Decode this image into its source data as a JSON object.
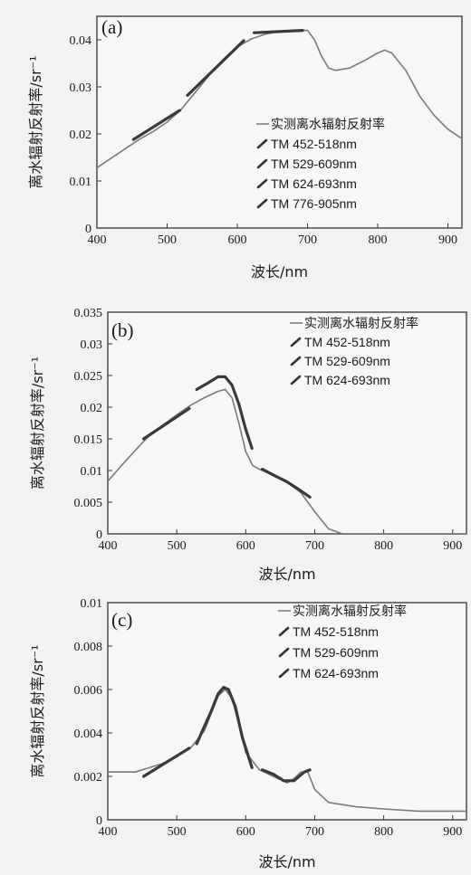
{
  "chart_data": [
    {
      "type": "line",
      "panel_label": "(a)",
      "xlabel": "波长/nm",
      "ylabel": "离水辐射反射率/sr⁻¹",
      "xlim": [
        400,
        920
      ],
      "ylim": [
        0,
        0.045
      ],
      "xticks": [
        "400",
        "500",
        "600",
        "700",
        "800",
        "900"
      ],
      "xtick_values": [
        400,
        500,
        600,
        700,
        800,
        900
      ],
      "yticks": [
        "0",
        "0.01",
        "0.02",
        "0.03",
        "0.04"
      ],
      "ytick_values": [
        0,
        0.01,
        0.02,
        0.03,
        0.04
      ],
      "grid": false,
      "legend_position": "right",
      "series": [
        {
          "name": "实测离水辐射反射率",
          "style": "solid",
          "x": [
            400,
            420,
            440,
            460,
            480,
            500,
            520,
            540,
            560,
            580,
            600,
            620,
            640,
            660,
            680,
            700,
            710,
            720,
            730,
            740,
            760,
            780,
            800,
            810,
            820,
            840,
            860,
            880,
            900,
            920
          ],
          "y": [
            0.0128,
            0.0148,
            0.0168,
            0.0188,
            0.0205,
            0.0225,
            0.0252,
            0.0288,
            0.0325,
            0.0358,
            0.0385,
            0.0402,
            0.0412,
            0.0418,
            0.042,
            0.042,
            0.04,
            0.0365,
            0.034,
            0.0335,
            0.034,
            0.0355,
            0.0372,
            0.0378,
            0.0372,
            0.0335,
            0.028,
            0.024,
            0.021,
            0.019
          ]
        },
        {
          "name": "TM 452-518nm",
          "style": "segment",
          "x": [
            452,
            518
          ],
          "y": [
            0.0188,
            0.025
          ]
        },
        {
          "name": "TM 529-609nm",
          "style": "segment",
          "x": [
            529,
            609
          ],
          "y": [
            0.0282,
            0.0398
          ]
        },
        {
          "name": "TM 624-693nm",
          "style": "segment",
          "x": [
            624,
            693
          ],
          "y": [
            0.0415,
            0.042
          ]
        },
        {
          "name": "TM 776-905nm",
          "style": "none",
          "x": [],
          "y": []
        }
      ]
    },
    {
      "type": "line",
      "panel_label": "(b)",
      "xlabel": "波长/nm",
      "ylabel": "离水辐射反射率/sr⁻¹",
      "xlim": [
        400,
        920
      ],
      "ylim": [
        0,
        0.035
      ],
      "xticks": [
        "400",
        "500",
        "600",
        "700",
        "800",
        "900"
      ],
      "xtick_values": [
        400,
        500,
        600,
        700,
        800,
        900
      ],
      "yticks": [
        "0",
        "0.005",
        "0.01",
        "0.015",
        "0.02",
        "0.025",
        "0.03",
        "0.035"
      ],
      "ytick_values": [
        0,
        0.005,
        0.01,
        0.015,
        0.02,
        0.025,
        0.03,
        0.035
      ],
      "grid": false,
      "legend_position": "top-right",
      "series": [
        {
          "name": "实测离水辐射反射率",
          "style": "solid",
          "x": [
            400,
            420,
            440,
            460,
            480,
            500,
            520,
            540,
            560,
            570,
            580,
            590,
            600,
            610,
            620,
            640,
            660,
            680,
            700,
            720,
            740,
            760,
            800,
            850,
            920
          ],
          "y": [
            0.0083,
            0.0108,
            0.0132,
            0.0155,
            0.0172,
            0.0188,
            0.0203,
            0.0215,
            0.0225,
            0.0228,
            0.0215,
            0.0175,
            0.013,
            0.0108,
            0.0102,
            0.0093,
            0.0082,
            0.0065,
            0.0035,
            0.0008,
            0.0,
            0.0,
            0.0,
            0.0,
            0.0
          ]
        },
        {
          "name": "TM 452-518nm",
          "style": "segment",
          "x": [
            452,
            518
          ],
          "y": [
            0.015,
            0.0198
          ]
        },
        {
          "name": "TM 529-609nm",
          "style": "curve",
          "x": [
            529,
            545,
            560,
            570,
            580,
            590,
            600,
            609
          ],
          "y": [
            0.0228,
            0.0238,
            0.0248,
            0.0248,
            0.0235,
            0.0205,
            0.0165,
            0.0135
          ]
        },
        {
          "name": "TM 624-693nm",
          "style": "curve",
          "x": [
            624,
            640,
            660,
            680,
            693
          ],
          "y": [
            0.0102,
            0.0093,
            0.0082,
            0.0068,
            0.0058
          ]
        }
      ]
    },
    {
      "type": "line",
      "panel_label": "(c)",
      "xlabel": "波长/nm",
      "ylabel": "离水辐射反射率/sr⁻¹",
      "xlim": [
        400,
        920
      ],
      "ylim": [
        0,
        0.01
      ],
      "xticks": [
        "400",
        "500",
        "600",
        "700",
        "800",
        "900"
      ],
      "xtick_values": [
        400,
        500,
        600,
        700,
        800,
        900
      ],
      "yticks": [
        "0",
        "0.002",
        "0.004",
        "0.006",
        "0.008",
        "0.01"
      ],
      "ytick_values": [
        0,
        0.002,
        0.004,
        0.006,
        0.008,
        0.01
      ],
      "grid": false,
      "legend_position": "top-right",
      "series": [
        {
          "name": "实测离水辐射反射率",
          "style": "solid",
          "x": [
            400,
            420,
            440,
            460,
            480,
            500,
            520,
            540,
            550,
            560,
            570,
            580,
            590,
            600,
            620,
            640,
            660,
            670,
            680,
            690,
            700,
            720,
            760,
            800,
            850,
            920
          ],
          "y": [
            0.0022,
            0.0022,
            0.0022,
            0.0024,
            0.0026,
            0.0029,
            0.0033,
            0.0041,
            0.0049,
            0.0057,
            0.006,
            0.0056,
            0.0044,
            0.0031,
            0.0023,
            0.002,
            0.0017,
            0.0019,
            0.0022,
            0.0022,
            0.0014,
            0.0008,
            0.0006,
            0.0005,
            0.0004,
            0.0004
          ]
        },
        {
          "name": "TM 452-518nm",
          "style": "segment",
          "x": [
            452,
            518
          ],
          "y": [
            0.002,
            0.0033
          ]
        },
        {
          "name": "TM 529-609nm",
          "style": "curve",
          "x": [
            529,
            540,
            550,
            560,
            568,
            575,
            585,
            595,
            609
          ],
          "y": [
            0.0035,
            0.0043,
            0.005,
            0.0058,
            0.0061,
            0.006,
            0.0052,
            0.0038,
            0.0024
          ]
        },
        {
          "name": "TM 624-693nm",
          "style": "curve",
          "x": [
            624,
            640,
            655,
            670,
            685,
            693
          ],
          "y": [
            0.0023,
            0.0021,
            0.0018,
            0.0018,
            0.0022,
            0.0023
          ]
        }
      ]
    }
  ]
}
